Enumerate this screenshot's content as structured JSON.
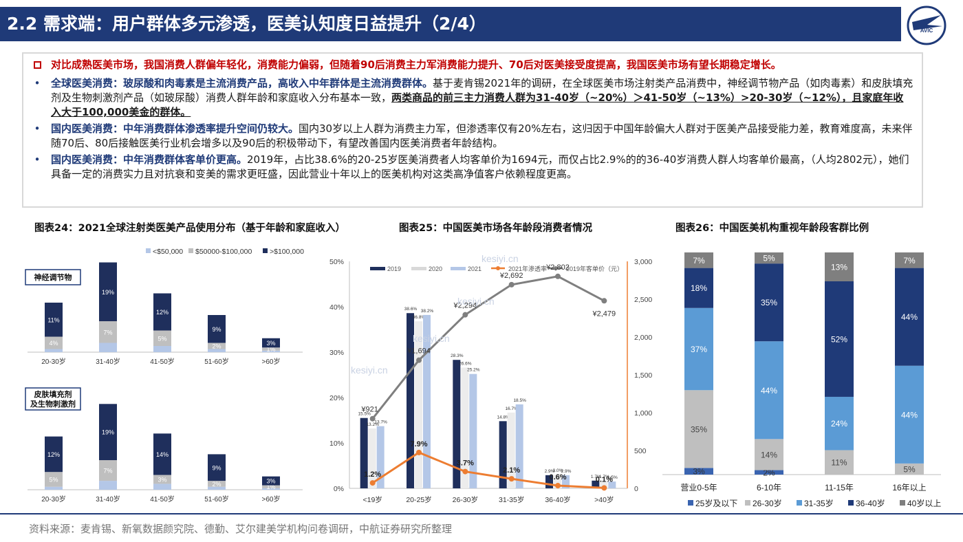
{
  "header": {
    "title": "2.2 需求端：用户群体多元渗透，医美认知度日益提升（2/4）",
    "logo_text": "AVIC"
  },
  "summary": {
    "lead": "对比成熟医美市场，我国消费人群偏年轻化，消费能力偏弱，但随着90后消费主力军消费能力提升、70后对医美接受度提高，我国医美市场有望长期稳定增长。",
    "bullets": [
      {
        "head": "全球医美消费：玻尿酸和肉毒素是主流消费产品，高收入中年群体是主流消费群体。",
        "body": "基于麦肯锡2021年的调研，在全球医美市场注射类产品消费中，神经调节物产品（如肉毒素）和皮肤填充剂及生物刺激剂产品（如玻尿酸）消费人群年龄和家庭收入分布基本一致，",
        "emph": "两类商品的前三主力消费人群为31-40岁（~20%）＞41-50岁（~13%）>20-30岁（~12%），且家庭年收入大于100,000美金的群体。"
      },
      {
        "head": "国内医美消费：中年消费群体渗透率提升空间仍较大。",
        "body": "国内30岁以上人群为消费主力军，但渗透率仅有20%左右，这归因于中国年龄偏大人群对于医美产品接受能力差，教育难度高，未来伴随70后、80后接触医美行业机会增多以及90后的积极带动下，有望改善国内医美消费者年龄结构。",
        "emph": ""
      },
      {
        "head": "国内医美消费：中年消费群体客单价更高。",
        "body": "2019年，占比38.6%的20-25岁医美消费者人均客单价为1694元，而仅占比2.9%的的36-40岁消费人群人均客单价最高，（人均2802元），她们具备一定的消费实力且对抗衰和变美的需求更旺盛，因此营业十年以上的医美机构对这类高净值客户依赖程度更高。",
        "emph": ""
      }
    ]
  },
  "charts": {
    "c24_title": "图表24：2021全球注射类医美产品使用分布（基于年龄和家庭收入）",
    "c25_title": "图表25：中国医美市场各年龄段消费者情况",
    "c26_title": "图表26：中国医美机构重视年龄段客群比例"
  },
  "watermark": "kesiyi.cn",
  "chart_data": [
    {
      "type": "bar",
      "stacked": true,
      "panel_label": "神经调节物",
      "categories": [
        "20-30岁",
        "31-40岁",
        "41-50岁",
        "51-60岁",
        ">60岁"
      ],
      "series": [
        {
          "name": "<$50,000",
          "values": [
            1,
            3,
            2,
            1,
            0.5
          ],
          "color": "#b4c7e7"
        },
        {
          "name": "$50000-$100,000",
          "values": [
            4,
            7,
            5,
            2,
            1
          ],
          "color": "#bfbfbf"
        },
        {
          "name": ">$100,000",
          "values": [
            11,
            19,
            12,
            9,
            3
          ],
          "color": "#1f2f5c"
        }
      ],
      "labels": [
        [
          "",
          "4%",
          "11%"
        ],
        [
          "",
          "7%",
          "19%"
        ],
        [
          "",
          "5%",
          "12%"
        ],
        [
          "",
          "2%",
          "9%"
        ],
        [
          "",
          "1%",
          "3%"
        ]
      ],
      "legend": "top-right"
    },
    {
      "type": "bar",
      "stacked": true,
      "panel_label": "皮肤填充剂及生物刺激剂",
      "categories": [
        "20-30岁",
        "31-40岁",
        "41-50岁",
        "51-60岁",
        ">60岁"
      ],
      "series": [
        {
          "name": "<$50,000",
          "values": [
            1,
            3,
            2,
            1,
            0.5
          ],
          "color": "#b4c7e7"
        },
        {
          "name": "$50000-$100,000",
          "values": [
            5,
            7,
            3,
            2,
            1
          ],
          "color": "#bfbfbf"
        },
        {
          "name": ">$100,000",
          "values": [
            12,
            19,
            14,
            9,
            3
          ],
          "color": "#1f2f5c"
        }
      ],
      "labels": [
        [
          "",
          "5%",
          "12%"
        ],
        [
          "",
          "7%",
          "19%"
        ],
        [
          "",
          "3%",
          "14%"
        ],
        [
          "",
          "2%",
          "9%"
        ],
        [
          "",
          "1%",
          "3%"
        ]
      ]
    },
    {
      "type": "bar",
      "categories": [
        "<19岁",
        "20-25岁",
        "26-30岁",
        "31-35岁",
        "36-40岁",
        ">40岁"
      ],
      "series": [
        {
          "name": "2019",
          "values": [
            15.5,
            38.6,
            28.3,
            14.8,
            2.9,
            1.7
          ],
          "color": "#1f2f5c"
        },
        {
          "name": "2020",
          "values": [
            13.2,
            36.8,
            26.6,
            16.7,
            3.0,
            1.7
          ],
          "color": "#e8e8e8"
        },
        {
          "name": "2021",
          "values": [
            13.7,
            38.2,
            25.2,
            18.5,
            2.9,
            1.5
          ],
          "color": "#b4c7e7"
        }
      ],
      "bar_labels": [
        [
          "15.5%",
          "13.2%",
          "13.7%"
        ],
        [
          "38.6%",
          "36.8%",
          "38.2%"
        ],
        [
          "28.3%",
          "26.6%",
          "25.2%"
        ],
        [
          "14.8%",
          "16.7%",
          "18.5%"
        ],
        [
          "2.9%",
          "3.0%",
          "2.9%"
        ],
        [
          "1.7%",
          "1.7%",
          "1.5%"
        ]
      ],
      "penetration": {
        "name": "2021年渗透率",
        "values": [
          1.2,
          7.9,
          3.7,
          2.1,
          0.6,
          0.1
        ],
        "labels": [
          "1.2%",
          "7.9%",
          "3.7%",
          "2.1%",
          "0.6%",
          "0.1%"
        ],
        "color": "#ed7d31"
      },
      "avg_price": {
        "name": "2019年客单价（元）",
        "values": [
          921,
          1694,
          2294,
          2692,
          2802,
          2479
        ],
        "labels": [
          "¥921",
          "¥1,694",
          "¥2,294",
          "¥2,692",
          "¥2,802",
          "¥2,479"
        ],
        "color": "#7f7f7f"
      },
      "y_left": {
        "ticks": [
          "0%",
          "10%",
          "20%",
          "30%",
          "40%",
          "50%"
        ],
        "range": [
          0,
          50
        ]
      },
      "y_right": {
        "ticks": [
          "0",
          "500",
          "1,000",
          "1,500",
          "2,000",
          "2,500",
          "3,000"
        ],
        "range": [
          0,
          3000
        ]
      },
      "legend": "top"
    },
    {
      "type": "bar",
      "stacked": true,
      "percent": true,
      "categories": [
        "营业0-5年",
        "6-10年",
        "11-15年",
        "16年以上"
      ],
      "series": [
        {
          "name": "25岁及以下",
          "values": [
            3,
            2,
            0,
            0
          ],
          "color": "#3a64b0"
        },
        {
          "name": "26-30岁",
          "values": [
            35,
            14,
            11,
            5
          ],
          "color": "#bfbfbf"
        },
        {
          "name": "31-35岁",
          "values": [
            37,
            44,
            24,
            44
          ],
          "color": "#5b9bd5"
        },
        {
          "name": "36-40岁",
          "values": [
            18,
            35,
            52,
            44
          ],
          "color": "#1f3a78"
        },
        {
          "name": "40岁以上",
          "values": [
            7,
            5,
            13,
            7
          ],
          "color": "#7f7f7f"
        }
      ],
      "labels": [
        [
          "3%",
          "35%",
          "37%",
          "18%",
          "7%"
        ],
        [
          "2%",
          "14%",
          "44%",
          "35%",
          "5%"
        ],
        [
          "",
          "11%",
          "24%",
          "52%",
          "13%"
        ],
        [
          "",
          "5%",
          "44%",
          "44%",
          "7%"
        ]
      ],
      "legend": "bottom"
    }
  ],
  "footer": {
    "source": "资料来源：麦肯锡、新氧数据颜究院、德勤、艾尔建美学机构问卷调研，中航证券研究所整理"
  }
}
